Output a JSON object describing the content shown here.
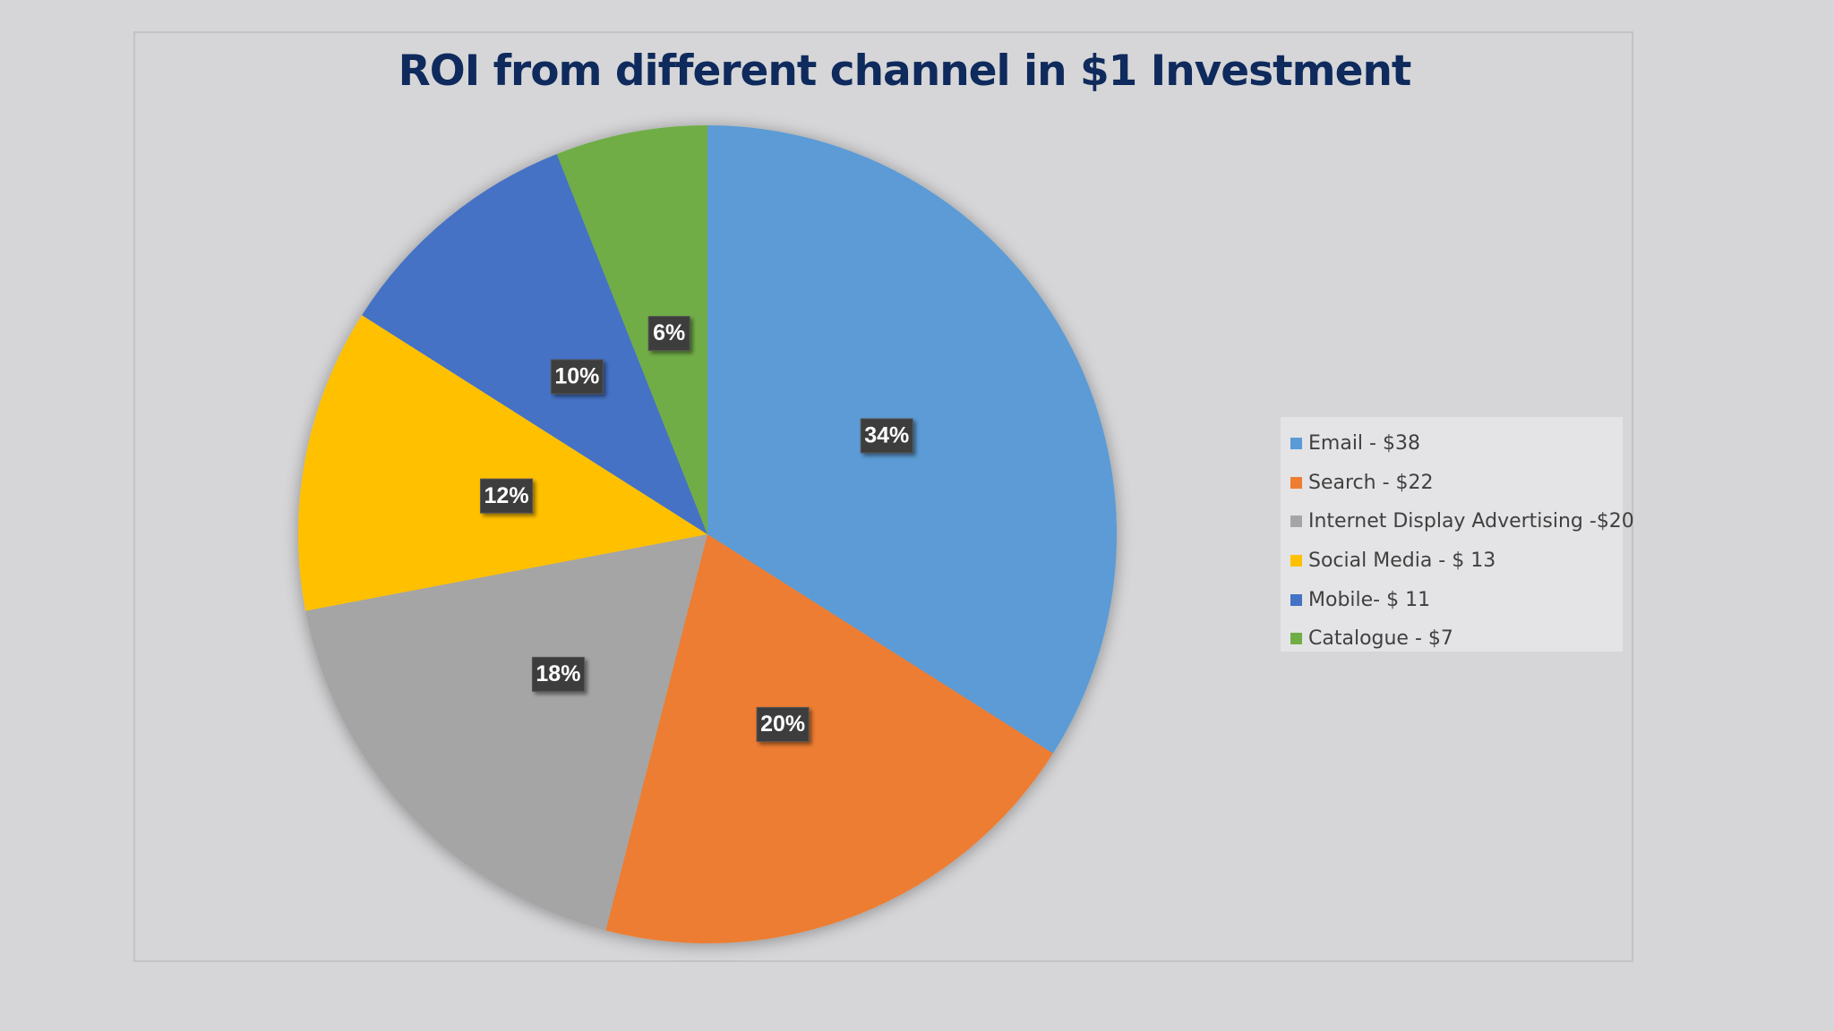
{
  "chart_data": {
    "type": "pie",
    "title": "ROI from different channel in $1 Investment",
    "slices": [
      {
        "name": "Email - $38",
        "value": 34,
        "label": "34%",
        "color": "#5b9bd5"
      },
      {
        "name": "Search - $22",
        "value": 20,
        "label": "20%",
        "color": "#ed7d31"
      },
      {
        "name": "Internet Display Advertising -$20",
        "value": 18,
        "label": "18%",
        "color": "#a5a5a5"
      },
      {
        "name": "Social Media - $ 13",
        "value": 12,
        "label": "12%",
        "color": "#ffc000"
      },
      {
        "name": "Mobile- $ 11",
        "value": 10,
        "label": "10%",
        "color": "#4472c4"
      },
      {
        "name": "Catalogue - $7",
        "value": 6,
        "label": "6%",
        "color": "#70ad47"
      }
    ],
    "legend_position": "right"
  }
}
